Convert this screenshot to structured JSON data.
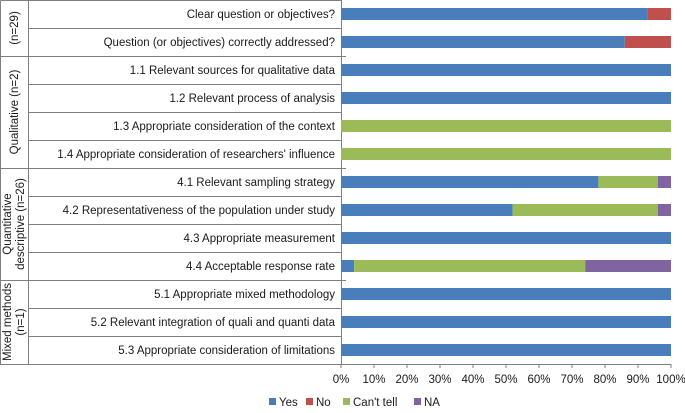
{
  "chart_data": {
    "type": "bar",
    "orientation": "horizontal",
    "stacked": true,
    "percent_axis": true,
    "xlim": [
      0,
      100
    ],
    "x_ticks": [
      "0%",
      "10%",
      "20%",
      "30%",
      "40%",
      "50%",
      "60%",
      "70%",
      "80%",
      "90%",
      "100%"
    ],
    "groups": [
      {
        "label": "(n=29)",
        "items": 2
      },
      {
        "label": "Qualitative (n=2)",
        "items": 4
      },
      {
        "label": "Quantitative descriptive (n=26)",
        "label_lines": [
          "Quantitative",
          "descriptive (n=26)"
        ],
        "items": 4
      },
      {
        "label": "Mixed methods (n=1)",
        "label_lines": [
          "Mixed methods",
          "(n=1)"
        ],
        "items": 3
      }
    ],
    "categories": [
      "Clear question or objectives?",
      "Question (or objectives) correctly addressed?",
      "1.1 Relevant sources for qualitative data",
      "1.2 Relevant process of analysis",
      "1.3 Appropriate consideration of the context",
      "1.4 Appropriate consideration of researchers' influence",
      "4.1 Relevant sampling strategy",
      "4.2 Representativeness of the population under study",
      "4.3 Appropriate measurement",
      "4.4 Acceptable response rate",
      "5.1 Appropriate mixed methodology",
      "5.2 Relevant integration of quali and quanti data",
      "5.3 Appropriate consideration of limitations"
    ],
    "series": [
      {
        "name": "Yes",
        "color": "#4a7ebb",
        "values": [
          93,
          86,
          100,
          100,
          0,
          0,
          78,
          52,
          100,
          4,
          100,
          100,
          100
        ]
      },
      {
        "name": "No",
        "color": "#c0504d",
        "values": [
          7,
          14,
          0,
          0,
          0,
          0,
          0,
          0,
          0,
          0,
          0,
          0,
          0
        ]
      },
      {
        "name": "Can't tell",
        "color": "#9bbb59",
        "values": [
          0,
          0,
          0,
          0,
          100,
          100,
          18,
          44,
          0,
          70,
          0,
          0,
          0
        ]
      },
      {
        "name": "NA",
        "color": "#8064a2",
        "values": [
          0,
          0,
          0,
          0,
          0,
          0,
          4,
          4,
          0,
          26,
          0,
          0,
          0
        ]
      }
    ],
    "legend_position": "bottom",
    "grid": false
  }
}
